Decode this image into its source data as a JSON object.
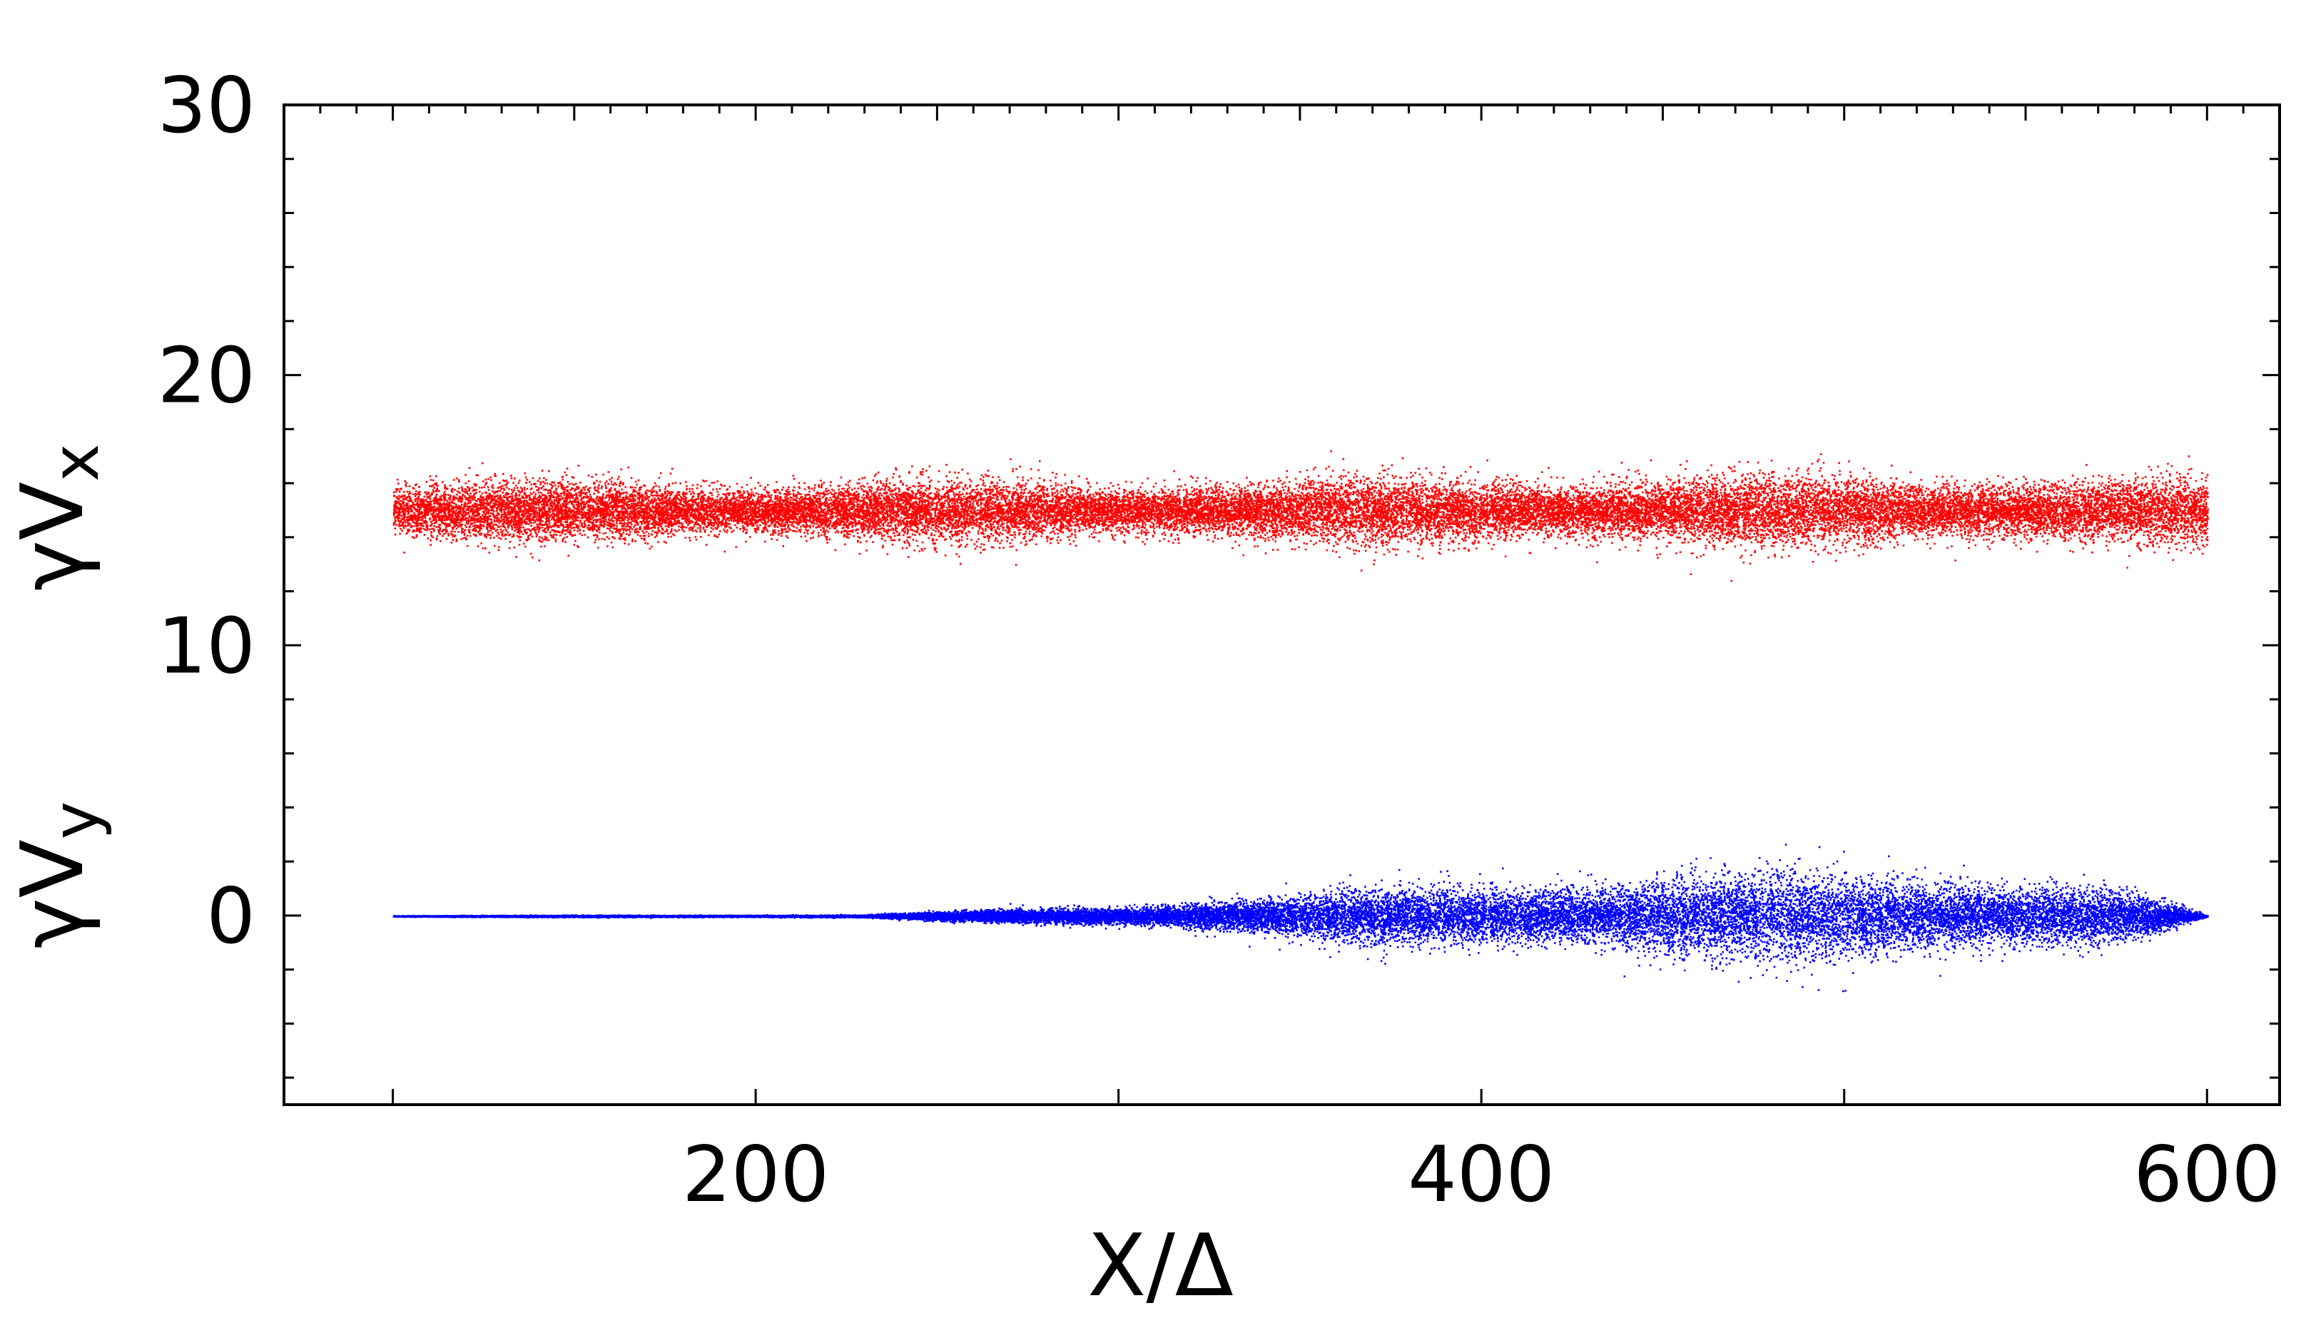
{
  "chart_data": {
    "type": "scatter",
    "title": "",
    "xlabel": "X/Δ",
    "ylabel_top": {
      "base": "γV",
      "sub": "x"
    },
    "ylabel_bottom": {
      "base": "γV",
      "sub": "y"
    },
    "xlim": [
      70,
      620
    ],
    "ylim": [
      -7,
      30
    ],
    "x_ticks": [
      200,
      400,
      600
    ],
    "y_ticks": [
      0,
      10,
      20,
      30
    ],
    "x_minor_step": 100,
    "y_minor_step": 2,
    "grid": false,
    "legend": "none",
    "series": [
      {
        "label": "γVx",
        "color": "#ff0000",
        "x_range": [
          100,
          600
        ],
        "center": 15,
        "spread_profile": [
          {
            "x": 100,
            "halfwidth": 1.1
          },
          {
            "x": 300,
            "halfwidth": 1.1
          },
          {
            "x": 460,
            "halfwidth": 1.3
          },
          {
            "x": 600,
            "halfwidth": 1.2
          }
        ],
        "approx_points": 30000
      },
      {
        "label": "γVy",
        "color": "#0000ff",
        "x_range": [
          100,
          600
        ],
        "center": 0,
        "spread_profile": [
          {
            "x": 100,
            "halfwidth": 0.02
          },
          {
            "x": 230,
            "halfwidth": 0.05
          },
          {
            "x": 300,
            "halfwidth": 0.4
          },
          {
            "x": 350,
            "halfwidth": 0.8
          },
          {
            "x": 400,
            "halfwidth": 1.2
          },
          {
            "x": 450,
            "halfwidth": 1.5
          },
          {
            "x": 520,
            "halfwidth": 1.6
          },
          {
            "x": 570,
            "halfwidth": 1.2
          },
          {
            "x": 590,
            "halfwidth": 0.4
          },
          {
            "x": 600,
            "halfwidth": 0.02
          }
        ],
        "approx_points": 30000
      }
    ]
  }
}
